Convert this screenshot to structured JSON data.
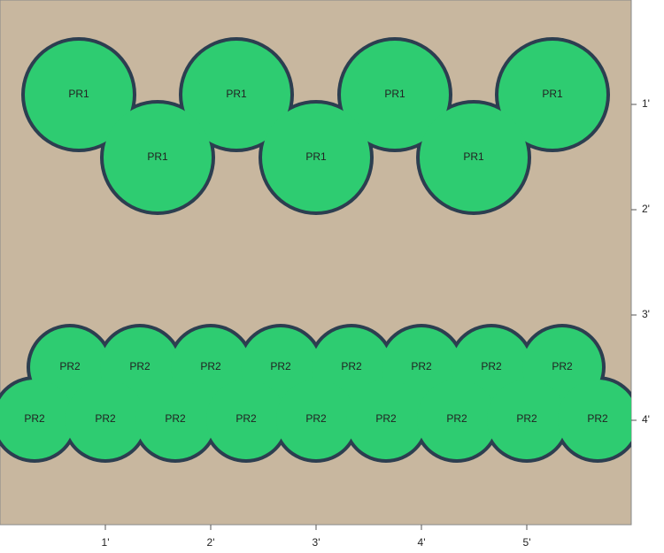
{
  "x_axis_ticks": [
    "1'",
    "2'",
    "3'",
    "4'",
    "5'"
  ],
  "y_axis_ticks": [
    "1'",
    "2'",
    "3'",
    "4'"
  ],
  "plants": [
    {
      "label": "PR1"
    },
    {
      "label": "PR1"
    },
    {
      "label": "PR1"
    },
    {
      "label": "PR1"
    },
    {
      "label": "PR1"
    },
    {
      "label": "PR1"
    },
    {
      "label": "PR1"
    },
    {
      "label": "PR2"
    },
    {
      "label": "PR2"
    },
    {
      "label": "PR2"
    },
    {
      "label": "PR2"
    },
    {
      "label": "PR2"
    },
    {
      "label": "PR2"
    },
    {
      "label": "PR2"
    },
    {
      "label": "PR2"
    },
    {
      "label": "PR2"
    },
    {
      "label": "PR2"
    },
    {
      "label": "PR2"
    },
    {
      "label": "PR2"
    },
    {
      "label": "PR2"
    },
    {
      "label": "PR2"
    },
    {
      "label": "PR2"
    },
    {
      "label": "PR2"
    },
    {
      "label": "PR2"
    }
  ]
}
